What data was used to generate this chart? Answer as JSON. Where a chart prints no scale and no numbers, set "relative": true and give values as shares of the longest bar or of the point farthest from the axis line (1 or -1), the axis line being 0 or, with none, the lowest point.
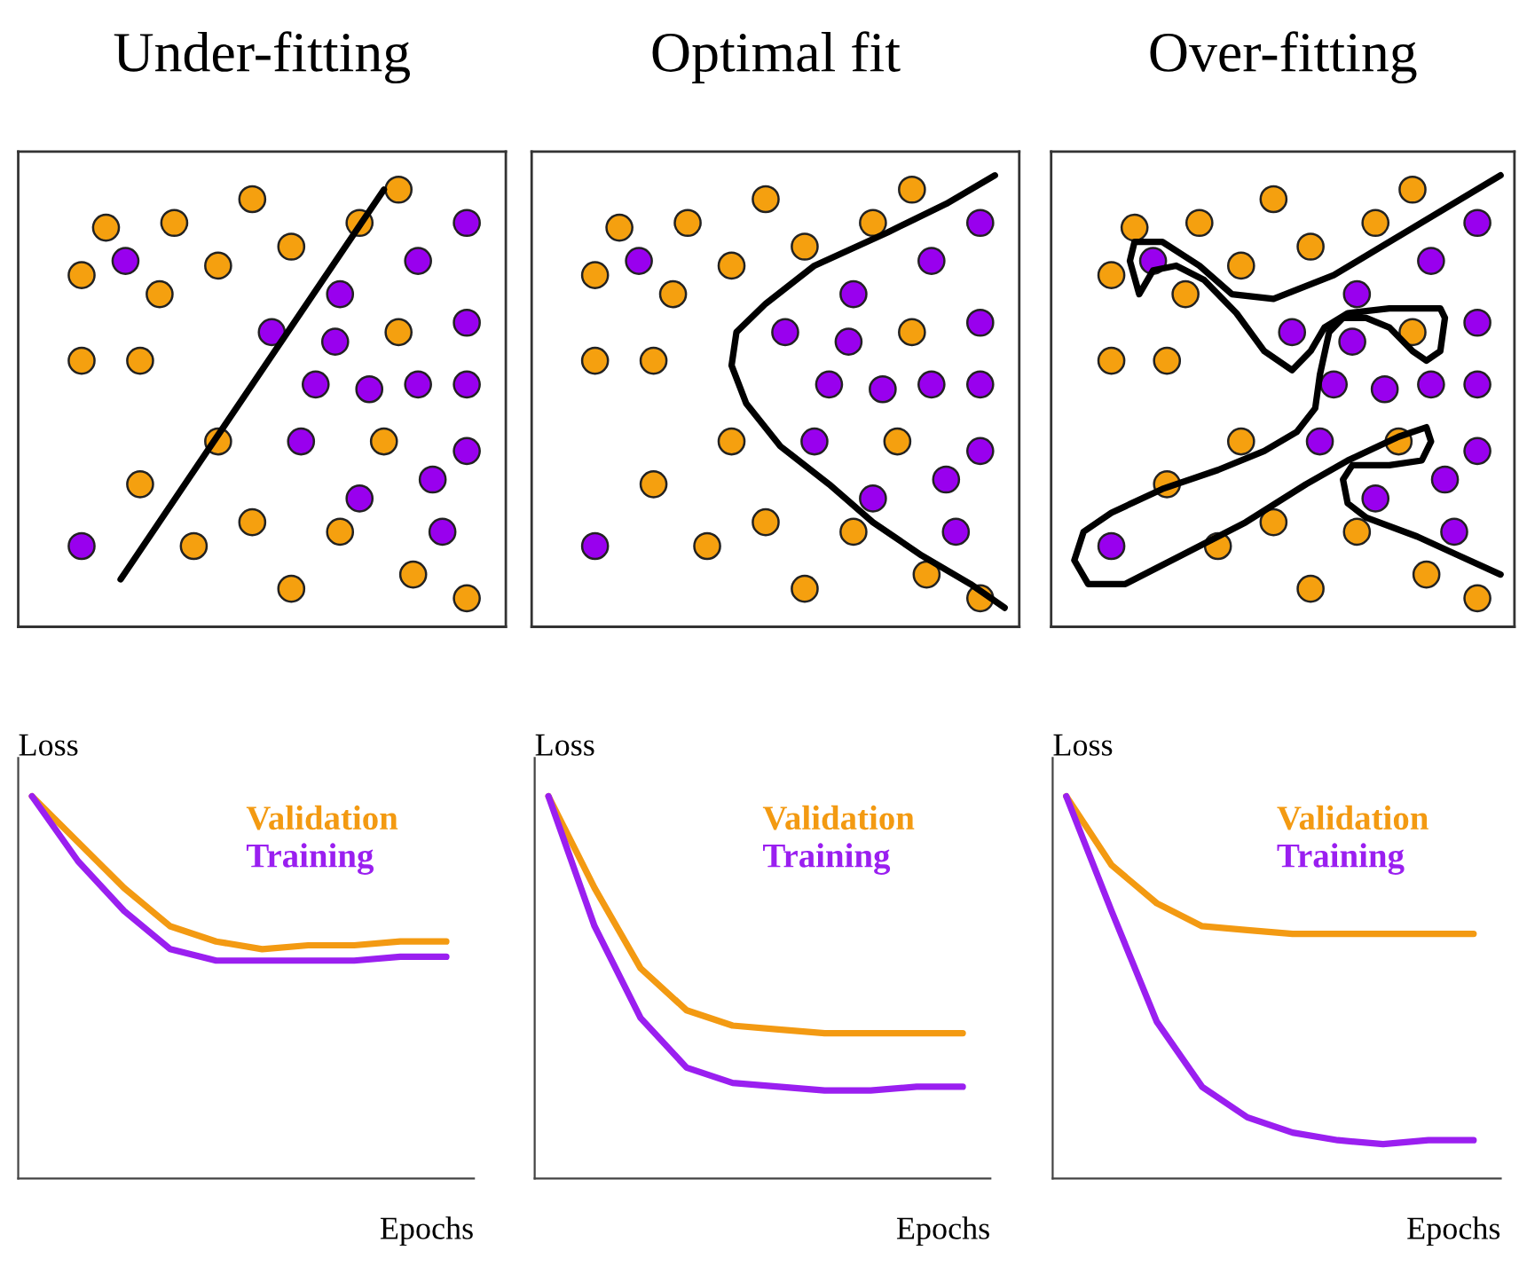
{
  "chart_data": [
    {
      "type": "line",
      "title": "Under-fitting",
      "ylabel": "Loss",
      "xlabel": "Epochs",
      "relative": true,
      "categories": [
        null,
        null,
        null,
        null,
        null,
        null,
        null,
        null,
        null,
        null
      ],
      "series": [
        {
          "name": "Validation",
          "color": "#f39a12",
          "values": [
            1,
            0.88,
            0.76,
            0.66,
            0.62,
            0.6,
            0.61,
            0.61,
            0.62,
            0.62
          ]
        },
        {
          "name": "Training",
          "color": "#9a1ff0",
          "values": [
            1,
            0.83,
            0.7,
            0.6,
            0.57,
            0.57,
            0.57,
            0.57,
            0.58,
            0.58
          ]
        }
      ]
    },
    {
      "type": "line",
      "title": "Optimal fit",
      "ylabel": "Loss",
      "xlabel": "Epochs",
      "relative": true,
      "categories": [
        null,
        null,
        null,
        null,
        null,
        null,
        null,
        null,
        null,
        null
      ],
      "series": [
        {
          "name": "Validation",
          "color": "#f39a12",
          "values": [
            1,
            0.76,
            0.55,
            0.44,
            0.4,
            0.39,
            0.38,
            0.38,
            0.38,
            0.38
          ]
        },
        {
          "name": "Training",
          "color": "#9a1ff0",
          "values": [
            1,
            0.66,
            0.42,
            0.29,
            0.25,
            0.24,
            0.23,
            0.23,
            0.24,
            0.24
          ]
        }
      ]
    },
    {
      "type": "line",
      "title": "Over-fitting",
      "ylabel": "Loss",
      "xlabel": "Epochs",
      "relative": true,
      "categories": [
        null,
        null,
        null,
        null,
        null,
        null,
        null,
        null,
        null,
        null
      ],
      "series": [
        {
          "name": "Validation",
          "color": "#f39a12",
          "values": [
            1,
            0.82,
            0.72,
            0.66,
            0.65,
            0.64,
            0.64,
            0.64,
            0.64,
            0.64
          ]
        },
        {
          "name": "Training",
          "color": "#9a1ff0",
          "values": [
            1,
            0.7,
            0.41,
            0.24,
            0.16,
            0.12,
            0.1,
            0.09,
            0.1,
            0.1
          ]
        }
      ]
    }
  ]
}
